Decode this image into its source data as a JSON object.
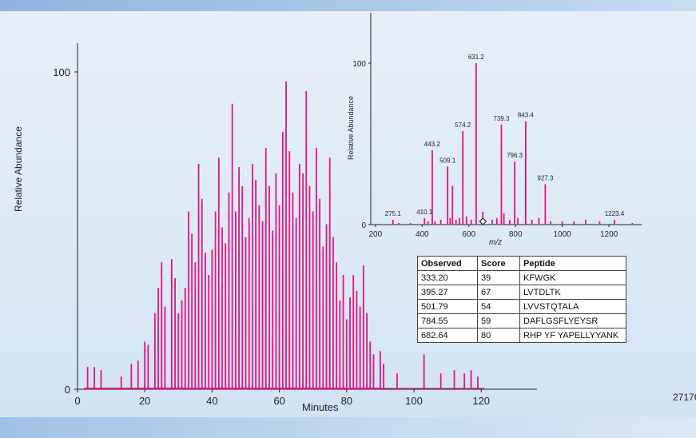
{
  "chart_data": [
    {
      "type": "line",
      "title": "",
      "xlabel": "Minutes",
      "ylabel": "Relative Abundance",
      "xlim": [
        0,
        135
      ],
      "ylim": [
        0,
        110
      ],
      "x_ticks": [
        0,
        20,
        40,
        60,
        80,
        100,
        120
      ],
      "y_ticks": [
        0,
        100
      ],
      "color": "#e8117f",
      "peaks": [
        {
          "x": 3,
          "y": 7
        },
        {
          "x": 5,
          "y": 7
        },
        {
          "x": 7,
          "y": 6
        },
        {
          "x": 13,
          "y": 4
        },
        {
          "x": 16,
          "y": 8
        },
        {
          "x": 18,
          "y": 9
        },
        {
          "x": 20,
          "y": 15
        },
        {
          "x": 21,
          "y": 14
        },
        {
          "x": 23,
          "y": 24
        },
        {
          "x": 24,
          "y": 32
        },
        {
          "x": 25,
          "y": 40
        },
        {
          "x": 26,
          "y": 26
        },
        {
          "x": 28,
          "y": 41
        },
        {
          "x": 29,
          "y": 35
        },
        {
          "x": 30,
          "y": 24
        },
        {
          "x": 31,
          "y": 28
        },
        {
          "x": 32,
          "y": 32
        },
        {
          "x": 33,
          "y": 56
        },
        {
          "x": 34,
          "y": 49
        },
        {
          "x": 35,
          "y": 40
        },
        {
          "x": 36,
          "y": 71
        },
        {
          "x": 37,
          "y": 60
        },
        {
          "x": 38,
          "y": 43
        },
        {
          "x": 39,
          "y": 36
        },
        {
          "x": 40,
          "y": 44
        },
        {
          "x": 41,
          "y": 56
        },
        {
          "x": 42,
          "y": 73
        },
        {
          "x": 43,
          "y": 51
        },
        {
          "x": 44,
          "y": 46
        },
        {
          "x": 45,
          "y": 62
        },
        {
          "x": 46,
          "y": 90
        },
        {
          "x": 47,
          "y": 56
        },
        {
          "x": 48,
          "y": 70
        },
        {
          "x": 49,
          "y": 64
        },
        {
          "x": 50,
          "y": 48
        },
        {
          "x": 51,
          "y": 54
        },
        {
          "x": 52,
          "y": 71
        },
        {
          "x": 53,
          "y": 66
        },
        {
          "x": 54,
          "y": 58
        },
        {
          "x": 55,
          "y": 53
        },
        {
          "x": 56,
          "y": 76
        },
        {
          "x": 57,
          "y": 64
        },
        {
          "x": 58,
          "y": 50
        },
        {
          "x": 59,
          "y": 68
        },
        {
          "x": 60,
          "y": 58
        },
        {
          "x": 61,
          "y": 81
        },
        {
          "x": 62,
          "y": 97
        },
        {
          "x": 63,
          "y": 75
        },
        {
          "x": 64,
          "y": 62
        },
        {
          "x": 65,
          "y": 54
        },
        {
          "x": 66,
          "y": 71
        },
        {
          "x": 67,
          "y": 68
        },
        {
          "x": 68,
          "y": 94
        },
        {
          "x": 69,
          "y": 64
        },
        {
          "x": 70,
          "y": 56
        },
        {
          "x": 71,
          "y": 76
        },
        {
          "x": 72,
          "y": 60
        },
        {
          "x": 73,
          "y": 45
        },
        {
          "x": 74,
          "y": 52
        },
        {
          "x": 75,
          "y": 73
        },
        {
          "x": 76,
          "y": 48
        },
        {
          "x": 77,
          "y": 40
        },
        {
          "x": 78,
          "y": 28
        },
        {
          "x": 79,
          "y": 36
        },
        {
          "x": 80,
          "y": 22
        },
        {
          "x": 81,
          "y": 29
        },
        {
          "x": 82,
          "y": 36
        },
        {
          "x": 83,
          "y": 31
        },
        {
          "x": 84,
          "y": 26
        },
        {
          "x": 85,
          "y": 39
        },
        {
          "x": 86,
          "y": 24
        },
        {
          "x": 87,
          "y": 15
        },
        {
          "x": 88,
          "y": 11
        },
        {
          "x": 90,
          "y": 12
        },
        {
          "x": 91,
          "y": 8
        },
        {
          "x": 95,
          "y": 5
        },
        {
          "x": 103,
          "y": 11
        },
        {
          "x": 108,
          "y": 5
        },
        {
          "x": 112,
          "y": 6
        },
        {
          "x": 115,
          "y": 5
        },
        {
          "x": 117,
          "y": 6
        },
        {
          "x": 119,
          "y": 4
        }
      ]
    },
    {
      "type": "bar",
      "title": "",
      "xlabel": "m/z",
      "ylabel": "Relative Abundance",
      "xlim": [
        180,
        1340
      ],
      "ylim": [
        0,
        110
      ],
      "x_ticks": [
        200,
        400,
        600,
        800,
        1000,
        1200
      ],
      "y_ticks": [
        0,
        100
      ],
      "color": "#e8117f",
      "peaks": [
        {
          "x": 275.1,
          "y": 3,
          "label": "275.1"
        },
        {
          "x": 410.1,
          "y": 4,
          "label": "410.1"
        },
        {
          "x": 443.2,
          "y": 46,
          "label": "443.2"
        },
        {
          "x": 509.1,
          "y": 36,
          "label": "509.1"
        },
        {
          "x": 574.2,
          "y": 58,
          "label": "574.2"
        },
        {
          "x": 631.2,
          "y": 100,
          "label": "631.2"
        },
        {
          "x": 739.3,
          "y": 62,
          "label": "739.3"
        },
        {
          "x": 796.3,
          "y": 39,
          "label": "796.3"
        },
        {
          "x": 843.4,
          "y": 64,
          "label": "843.4"
        },
        {
          "x": 927.3,
          "y": 25,
          "label": "927.3"
        },
        {
          "x": 1223.4,
          "y": 3,
          "label": "1223.4"
        },
        {
          "x": 300,
          "y": 1
        },
        {
          "x": 350,
          "y": 1
        },
        {
          "x": 425,
          "y": 2
        },
        {
          "x": 455,
          "y": 2
        },
        {
          "x": 480,
          "y": 3
        },
        {
          "x": 520,
          "y": 4
        },
        {
          "x": 530,
          "y": 24
        },
        {
          "x": 545,
          "y": 3
        },
        {
          "x": 560,
          "y": 4
        },
        {
          "x": 590,
          "y": 5
        },
        {
          "x": 610,
          "y": 3
        },
        {
          "x": 660,
          "y": 8
        },
        {
          "x": 700,
          "y": 3
        },
        {
          "x": 720,
          "y": 4
        },
        {
          "x": 750,
          "y": 7
        },
        {
          "x": 775,
          "y": 3
        },
        {
          "x": 810,
          "y": 4
        },
        {
          "x": 870,
          "y": 3
        },
        {
          "x": 900,
          "y": 4
        },
        {
          "x": 950,
          "y": 2
        },
        {
          "x": 1000,
          "y": 2
        },
        {
          "x": 1050,
          "y": 2
        },
        {
          "x": 1100,
          "y": 3
        },
        {
          "x": 1160,
          "y": 2
        },
        {
          "x": 1300,
          "y": 1
        }
      ]
    },
    {
      "type": "table",
      "columns": [
        "Observed",
        "Score",
        "Peptide"
      ],
      "rows": [
        [
          "333.20",
          "39",
          "KFWGK"
        ],
        [
          "395.27",
          "67",
          "LVTDLTK"
        ],
        [
          "501.79",
          "54",
          "LVVSTQTALA"
        ],
        [
          "784.55",
          "59",
          "DAFLGSFLYEYSR"
        ],
        [
          "682.64",
          "80",
          "RHP YF YAPELLYYANK"
        ]
      ]
    }
  ],
  "figure_id": "27176"
}
